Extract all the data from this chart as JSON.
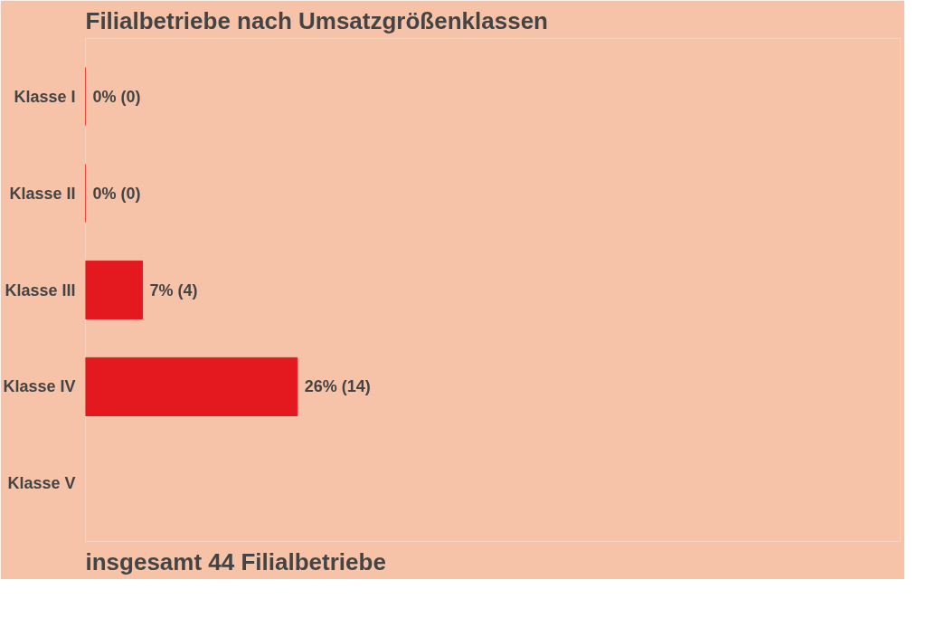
{
  "chart_data": {
    "type": "bar",
    "orientation": "horizontal",
    "title": "Filialbetriebe nach Umsatzgrößenklassen",
    "categories": [
      "Klasse I",
      "Klasse II",
      "Klasse III",
      "Klasse IV",
      "Klasse V"
    ],
    "values": [
      0,
      0,
      7,
      26,
      null
    ],
    "value_labels": [
      "0% (0)",
      "0% (0)",
      "7% (4)",
      "26% (14)",
      null
    ],
    "color": "#e3191f",
    "xlim": [
      0,
      100
    ],
    "tick_labels": "y",
    "grid": false,
    "annotations": [
      "insgesamt 44 Filialbetriebe"
    ]
  }
}
